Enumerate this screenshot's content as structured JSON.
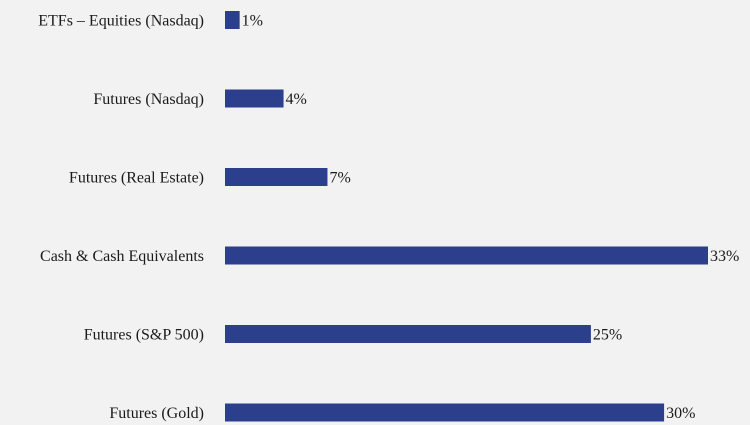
{
  "chart_data": {
    "type": "bar",
    "orientation": "horizontal",
    "categories": [
      "ETFs – Equities (Nasdaq)",
      "Futures (Nasdaq)",
      "Futures (Real Estate)",
      "Cash & Cash Equivalents",
      "Futures (S&P 500)",
      "Futures (Gold)"
    ],
    "values": [
      1,
      4,
      7,
      33,
      25,
      30
    ],
    "value_labels": [
      "1%",
      "4%",
      "7%",
      "33%",
      "25%",
      "30%"
    ],
    "unit": "%",
    "xlim": [
      0,
      33
    ],
    "grid": false,
    "colors": {
      "bar": "#2b3f8c",
      "background": "#f2f2f2"
    }
  }
}
